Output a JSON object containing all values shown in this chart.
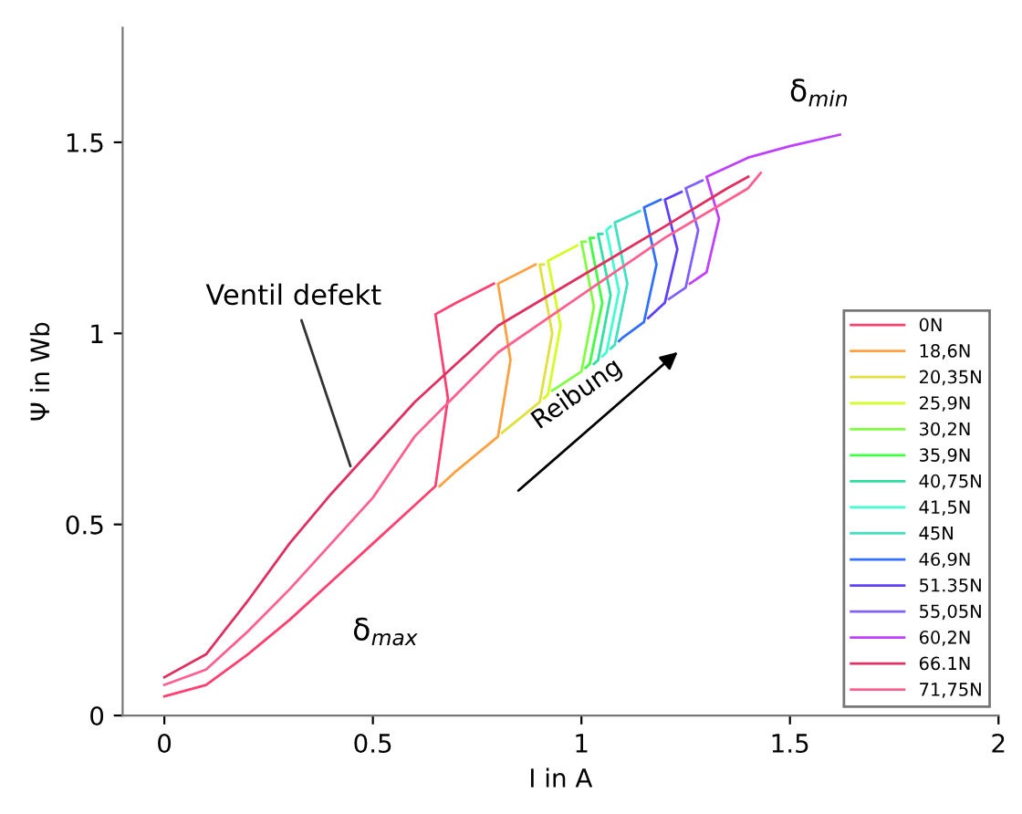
{
  "chart_data": {
    "type": "line",
    "xlabel": "I in A",
    "ylabel": "Ψ in Wb",
    "xlim": [
      -0.1,
      2
    ],
    "ylim": [
      0,
      1.8
    ],
    "xticks": [
      0,
      0.5,
      1,
      1.5,
      2
    ],
    "yticks": [
      0,
      0.5,
      1,
      1.5
    ],
    "grid": false,
    "legend": "lower right",
    "series": [
      {
        "name": "0N",
        "color": "#ff4070",
        "x": [
          0,
          0.1,
          0.2,
          0.3,
          0.4,
          0.5,
          0.6,
          0.65,
          0.68,
          0.65,
          0.7,
          0.79
        ],
        "values": [
          0.05,
          0.08,
          0.16,
          0.25,
          0.35,
          0.45,
          0.55,
          0.6,
          0.83,
          1.05,
          1.08,
          1.13
        ]
      },
      {
        "name": "18,6N",
        "color": "#ffa040",
        "x": [
          0.66,
          0.7,
          0.8,
          0.83,
          0.8,
          0.89
        ],
        "values": [
          0.6,
          0.64,
          0.73,
          0.93,
          1.13,
          1.18
        ]
      },
      {
        "name": "20,35N",
        "color": "#e0e040",
        "x": [
          0.81,
          0.9,
          0.93,
          0.9,
          0.91
        ],
        "values": [
          0.74,
          0.82,
          1.0,
          1.18,
          1.18
        ]
      },
      {
        "name": "25,9N",
        "color": "#d0ff20",
        "x": [
          0.91,
          0.92,
          0.95,
          0.92,
          0.99
        ],
        "values": [
          0.83,
          0.84,
          1.02,
          1.19,
          1.23
        ]
      },
      {
        "name": "30,2N",
        "color": "#80ff40",
        "x": [
          0.93,
          1.0,
          1.03,
          1.0,
          1.01
        ],
        "values": [
          0.85,
          0.9,
          1.07,
          1.24,
          1.24
        ]
      },
      {
        "name": "35,9N",
        "color": "#40ff40",
        "x": [
          1.01,
          1.02,
          1.05,
          1.02,
          1.03
        ],
        "values": [
          0.91,
          0.92,
          1.08,
          1.25,
          1.25
        ]
      },
      {
        "name": "40,75N",
        "color": "#30e0a0",
        "x": [
          1.03,
          1.04,
          1.07,
          1.04,
          1.05
        ],
        "values": [
          0.92,
          0.93,
          1.1,
          1.26,
          1.26
        ]
      },
      {
        "name": "41,5N",
        "color": "#40ffd0",
        "x": [
          1.05,
          1.06,
          1.09,
          1.06,
          1.07
        ],
        "values": [
          0.94,
          0.95,
          1.11,
          1.27,
          1.28
        ]
      },
      {
        "name": "45N",
        "color": "#40e0c0",
        "x": [
          1.07,
          1.08,
          1.11,
          1.08,
          1.1,
          1.14
        ],
        "values": [
          0.96,
          0.97,
          1.13,
          1.29,
          1.3,
          1.32
        ]
      },
      {
        "name": "46,9N",
        "color": "#3070ff",
        "x": [
          1.09,
          1.1,
          1.15,
          1.18,
          1.15,
          1.19
        ],
        "values": [
          0.98,
          0.99,
          1.03,
          1.18,
          1.33,
          1.35
        ]
      },
      {
        "name": "51.35N",
        "color": "#6040ff",
        "x": [
          1.16,
          1.2,
          1.23,
          1.2,
          1.24
        ],
        "values": [
          1.04,
          1.08,
          1.22,
          1.35,
          1.37
        ]
      },
      {
        "name": "55,05N",
        "color": "#8060ff",
        "x": [
          1.21,
          1.25,
          1.28,
          1.25,
          1.29
        ],
        "values": [
          1.09,
          1.12,
          1.27,
          1.38,
          1.4
        ]
      },
      {
        "name": "60,2N",
        "color": "#c040ff",
        "x": [
          1.26,
          1.3,
          1.33,
          1.3,
          1.4,
          1.5,
          1.62
        ],
        "values": [
          1.13,
          1.16,
          1.3,
          1.41,
          1.46,
          1.49,
          1.52
        ]
      },
      {
        "name": "66.1N",
        "color": "#e03060",
        "x": [
          0,
          0.1,
          0.2,
          0.3,
          0.4,
          0.5,
          0.6,
          0.7,
          0.8,
          1.0,
          1.2,
          1.35,
          1.4
        ],
        "values": [
          0.1,
          0.16,
          0.3,
          0.45,
          0.58,
          0.7,
          0.82,
          0.92,
          1.02,
          1.15,
          1.28,
          1.38,
          1.41
        ]
      },
      {
        "name": "71,75N",
        "color": "#ff6090",
        "x": [
          0,
          0.1,
          0.2,
          0.3,
          0.4,
          0.5,
          0.6,
          0.7,
          0.8,
          1.0,
          1.2,
          1.4,
          1.43
        ],
        "values": [
          0.08,
          0.12,
          0.22,
          0.33,
          0.45,
          0.57,
          0.73,
          0.84,
          0.95,
          1.1,
          1.25,
          1.38,
          1.42
        ]
      }
    ],
    "annotations": [
      {
        "text": "Ventil defekt",
        "x": 0.45,
        "y": 0.64
      },
      {
        "text": "Reibung"
      },
      {
        "text": "δ$_{min}$",
        "x": 1.62,
        "y": 1.52
      },
      {
        "text": "δ$_{max}$",
        "x": 0.5,
        "y": 0.45
      }
    ]
  }
}
